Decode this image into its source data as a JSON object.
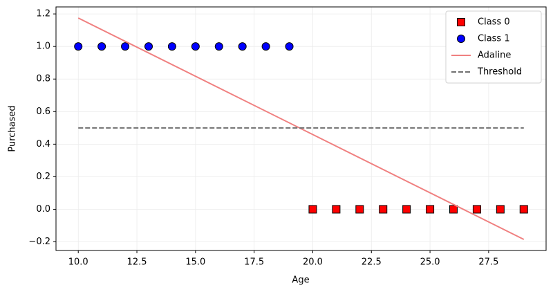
{
  "chart_data": {
    "type": "scatter",
    "xlabel": "Age",
    "ylabel": "Purchased",
    "xlim": [
      9.05,
      29.95
    ],
    "ylim": [
      -0.253,
      1.243
    ],
    "xticks": [
      {
        "value": 10,
        "label": "10.0"
      },
      {
        "value": 12.5,
        "label": "12.5"
      },
      {
        "value": 15,
        "label": "15.0"
      },
      {
        "value": 17.5,
        "label": "17.5"
      },
      {
        "value": 20,
        "label": "20.0"
      },
      {
        "value": 22.5,
        "label": "22.5"
      },
      {
        "value": 25,
        "label": "25.0"
      },
      {
        "value": 27.5,
        "label": "27.5"
      }
    ],
    "yticks": [
      {
        "value": -0.2,
        "label": "−0.2"
      },
      {
        "value": 0,
        "label": "0.0"
      },
      {
        "value": 0.2,
        "label": "0.2"
      },
      {
        "value": 0.4,
        "label": "0.4"
      },
      {
        "value": 0.6,
        "label": "0.6"
      },
      {
        "value": 0.8,
        "label": "0.8"
      },
      {
        "value": 1,
        "label": "1.0"
      },
      {
        "value": 1.2,
        "label": "1.2"
      }
    ],
    "grid": true,
    "legend": "upper right",
    "series": [
      {
        "name": "Class 0",
        "type": "scatter",
        "marker": "square",
        "color": "#ff0000",
        "x": [
          20,
          21,
          22,
          23,
          24,
          25,
          26,
          27,
          28,
          29
        ],
        "values": [
          0,
          0,
          0,
          0,
          0,
          0,
          0,
          0,
          0,
          0
        ]
      },
      {
        "name": "Class 1",
        "type": "scatter",
        "marker": "circle",
        "color": "#0000ff",
        "x": [
          10,
          11,
          12,
          13,
          14,
          15,
          16,
          17,
          18,
          19
        ],
        "values": [
          1,
          1,
          1,
          1,
          1,
          1,
          1,
          1,
          1,
          1
        ]
      },
      {
        "name": "Adaline",
        "type": "line",
        "dash": false,
        "color": "#f08080",
        "x": [
          10,
          29
        ],
        "values": [
          1.175,
          -0.185
        ]
      },
      {
        "name": "Threshold",
        "type": "line",
        "dash": true,
        "color": "#707070",
        "x": [
          10,
          29
        ],
        "values": [
          0.5,
          0.5
        ]
      }
    ]
  }
}
